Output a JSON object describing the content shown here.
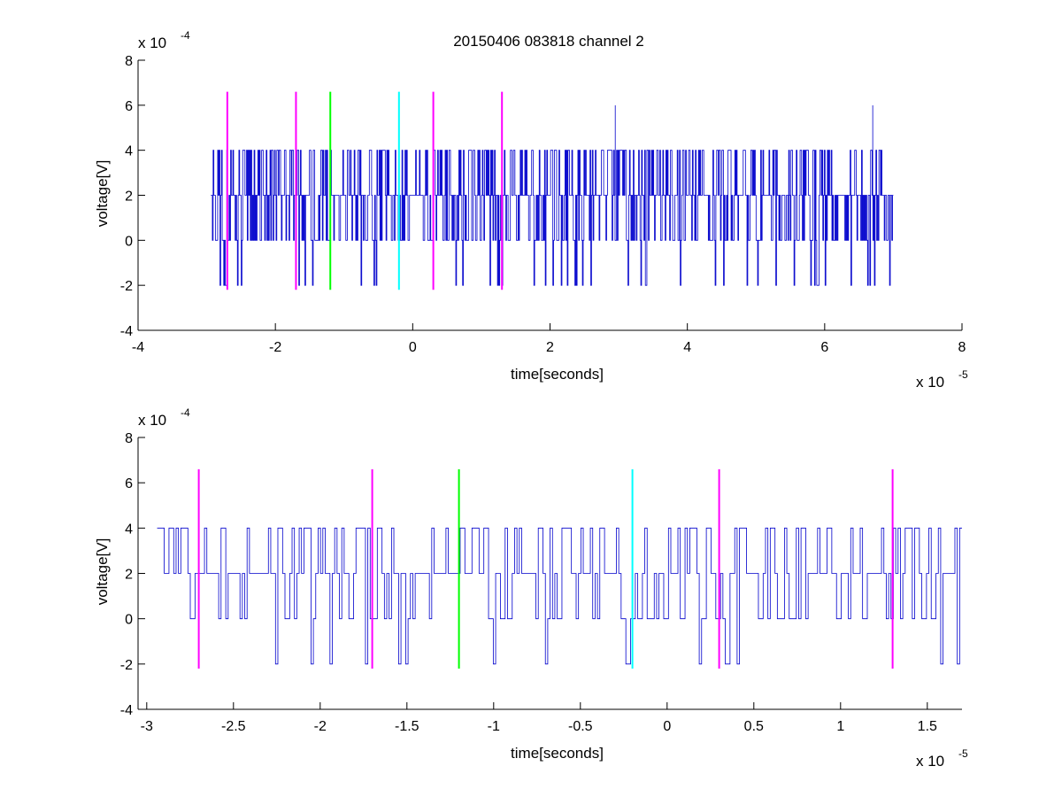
{
  "chart_data": [
    {
      "type": "line",
      "title": "20150406 083818 channel 2",
      "xlabel": "time[seconds]",
      "ylabel": "voltage[V]",
      "x_multiplier": {
        "base": "x 10",
        "exponent": "-5"
      },
      "y_multiplier": {
        "base": "x 10",
        "exponent": "-4"
      },
      "xlim": [
        -4e-05,
        8e-05
      ],
      "ylim": [
        -0.0004,
        0.0008
      ],
      "xticks": [
        -4e-05,
        -2e-05,
        0,
        2e-05,
        4e-05,
        6e-05,
        8e-05
      ],
      "xtick_labels": [
        "-4",
        "-2",
        "0",
        "2",
        "4",
        "6",
        "8"
      ],
      "yticks": [
        -0.0004,
        -0.0002,
        0,
        0.0002,
        0.0004,
        0.0006,
        0.0008
      ],
      "ytick_labels": [
        "-4",
        "-2",
        "0",
        "2",
        "4",
        "6",
        "8"
      ],
      "grid": false,
      "signal": {
        "color": "#0000cc",
        "x_start": -2.94e-05,
        "x_end": 7e-05,
        "quantization_step": 0.0002,
        "baseline": 0.0002,
        "range": [
          -0.0002,
          0.0006
        ]
      },
      "markers": [
        {
          "x": -2.7e-05,
          "color": "#ff00ff",
          "y_range": [
            -0.00022,
            0.00066
          ]
        },
        {
          "x": -1.7e-05,
          "color": "#ff00ff",
          "y_range": [
            -0.00022,
            0.00066
          ]
        },
        {
          "x": -1.2e-05,
          "color": "#00ff00",
          "y_range": [
            -0.00022,
            0.00066
          ]
        },
        {
          "x": -2e-06,
          "color": "#00ffff",
          "y_range": [
            -0.00022,
            0.00066
          ]
        },
        {
          "x": 3e-06,
          "color": "#ff00ff",
          "y_range": [
            -0.00022,
            0.00066
          ]
        },
        {
          "x": 1.3e-05,
          "color": "#ff00ff",
          "y_range": [
            -0.00022,
            0.00066
          ]
        }
      ]
    },
    {
      "type": "line",
      "title": "",
      "xlabel": "time[seconds]",
      "ylabel": "voltage[V]",
      "x_multiplier": {
        "base": "x 10",
        "exponent": "-5"
      },
      "y_multiplier": {
        "base": "x 10",
        "exponent": "-4"
      },
      "xlim": [
        -3.05e-05,
        1.7e-05
      ],
      "ylim": [
        -0.0004,
        0.0008
      ],
      "xticks": [
        -3e-05,
        -2.5e-05,
        -2e-05,
        -1.5e-05,
        -1e-05,
        -5e-06,
        0,
        5e-06,
        1e-05,
        1.5e-05
      ],
      "xtick_labels": [
        "-3",
        "-2.5",
        "-2",
        "-1.5",
        "-1",
        "-0.5",
        "0",
        "0.5",
        "1",
        "1.5"
      ],
      "yticks": [
        -0.0004,
        -0.0002,
        0,
        0.0002,
        0.0004,
        0.0006,
        0.0008
      ],
      "ytick_labels": [
        "-4",
        "-2",
        "0",
        "2",
        "4",
        "6",
        "8"
      ],
      "grid": false,
      "signal": {
        "color": "#0000cc",
        "x_start": -2.94e-05,
        "x_end": 1.7e-05,
        "quantization_step": 0.0002,
        "baseline": 0.0002,
        "range": [
          -0.0002,
          0.0004
        ]
      },
      "markers": [
        {
          "x": -2.7e-05,
          "color": "#ff00ff",
          "y_range": [
            -0.00022,
            0.00066
          ]
        },
        {
          "x": -1.7e-05,
          "color": "#ff00ff",
          "y_range": [
            -0.00022,
            0.00066
          ]
        },
        {
          "x": -1.2e-05,
          "color": "#00ff00",
          "y_range": [
            -0.00022,
            0.00066
          ]
        },
        {
          "x": -2e-06,
          "color": "#00ffff",
          "y_range": [
            -0.00022,
            0.00066
          ]
        },
        {
          "x": 3e-06,
          "color": "#ff00ff",
          "y_range": [
            -0.00022,
            0.00066
          ]
        },
        {
          "x": 1.3e-05,
          "color": "#ff00ff",
          "y_range": [
            -0.00022,
            0.00066
          ]
        }
      ]
    }
  ]
}
